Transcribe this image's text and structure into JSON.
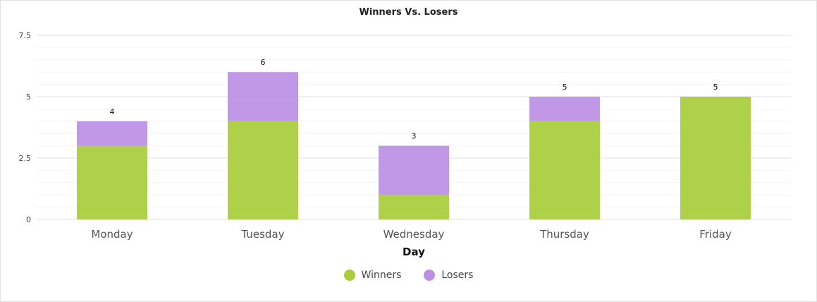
{
  "chart_data": {
    "type": "bar",
    "stacked": true,
    "title": "Winners Vs. Losers",
    "xlabel": "Day",
    "ylabel": "",
    "categories": [
      "Monday",
      "Tuesday",
      "Wednesday",
      "Thursday",
      "Friday"
    ],
    "series": [
      {
        "name": "Winners",
        "values": [
          3,
          4,
          1,
          4,
          5
        ],
        "color": "#a8cc3a"
      },
      {
        "name": "Losers",
        "values": [
          1,
          2,
          2,
          1,
          0
        ],
        "color": "#bc8fe5"
      }
    ],
    "totals": [
      4,
      6,
      3,
      5,
      5
    ],
    "ylim": [
      0,
      7.5
    ],
    "yticks": [
      0,
      2.5,
      5,
      7.5
    ],
    "yticklabels": [
      "0",
      "2.5",
      "5",
      "7.5"
    ],
    "grid": true,
    "legend": "bottom-center"
  }
}
